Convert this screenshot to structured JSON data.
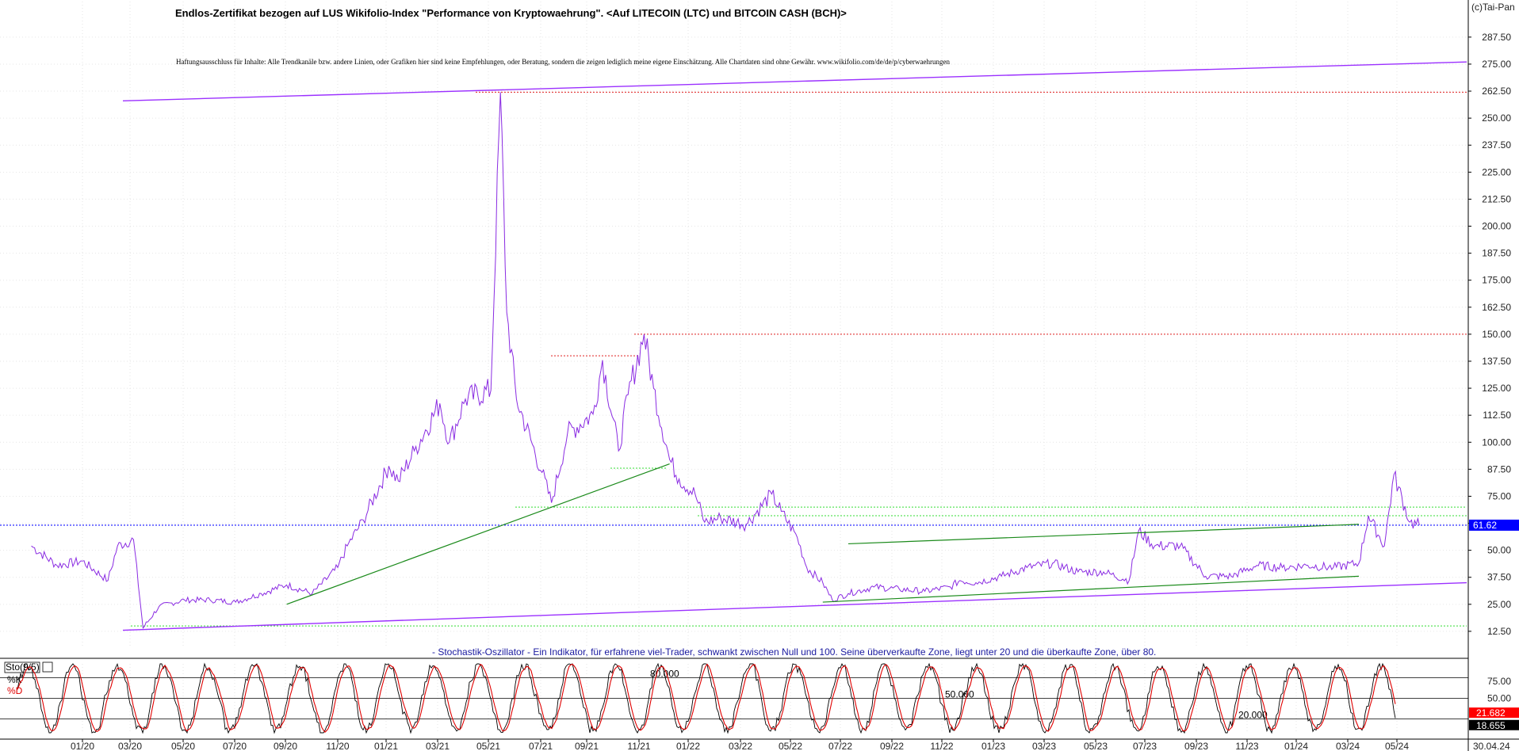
{
  "chart_data": [
    {
      "type": "line",
      "title": "Endlos-Zertifikat bezogen auf LUS Wikifolio-Index \"Performance von Kryptowaehrung\". <Auf LITECOIN (LTC) und BITCOIN CASH (BCH)>",
      "disclaimer": "Haftungsausschluss für Inhalte: Alle Trendkanäle bzw. andere Linien, oder Grafiken hier sind keine Empfehlungen, oder Beratung, sondern die zeigen lediglich meine eigene Einschätzung. Alle Chartdaten sind ohne Gewähr.  www.wikifolio.com/de/de/p/cyberwaehrungen",
      "copyright": "(c)Tai-Pan",
      "x_tick_labels": [
        "01/20",
        "03/20",
        "05/20",
        "07/20",
        "09/20",
        "11/20",
        "01/21",
        "03/21",
        "05/21",
        "07/21",
        "09/21",
        "11/21",
        "01/22",
        "03/22",
        "05/22",
        "07/22",
        "09/22",
        "11/22",
        "01/23",
        "03/23",
        "05/23",
        "07/23",
        "09/23",
        "11/23",
        "01/24",
        "03/24",
        "05/24"
      ],
      "x_last_label": "30.04.24",
      "y_tick_labels": [
        "12.50",
        "25.00",
        "37.50",
        "50.00",
        "62.50",
        "75.00",
        "87.50",
        "100.00",
        "112.50",
        "125.00",
        "137.50",
        "150.00",
        "162.50",
        "175.00",
        "187.50",
        "200.00",
        "212.50",
        "225.00",
        "237.50",
        "250.00",
        "262.50",
        "275.00",
        "287.50"
      ],
      "ylim": [
        0,
        296
      ],
      "current_value": 61.62,
      "current_value_label": "61.62",
      "colors": {
        "price": "#8a2be2",
        "trend_green": "#1a8a1a",
        "channel_purple": "#9b30ff",
        "resistance_red": "#e02020",
        "support_lightgreen": "#33dd33",
        "current_blue": "#1010ff",
        "badge_blue": "#0000ff"
      },
      "price_points": [
        [
          "11/19",
          52
        ],
        [
          "12/19",
          43
        ],
        [
          "01/20",
          45
        ],
        [
          "02/20",
          36
        ],
        [
          "02/20b",
          52
        ],
        [
          "03/20",
          55
        ],
        [
          "03/20b",
          14
        ],
        [
          "04/20",
          24
        ],
        [
          "05/20",
          27
        ],
        [
          "06/20",
          27
        ],
        [
          "07/20",
          26
        ],
        [
          "08/20",
          30
        ],
        [
          "09/20",
          34
        ],
        [
          "10/20",
          30
        ],
        [
          "11/20",
          42
        ],
        [
          "11/20b",
          52
        ],
        [
          "12/20",
          64
        ],
        [
          "01/21",
          89
        ],
        [
          "01/21b",
          82
        ],
        [
          "02/21",
          96
        ],
        [
          "03/21",
          118
        ],
        [
          "03/21b",
          100
        ],
        [
          "04/21",
          120
        ],
        [
          "05/21",
          124
        ],
        [
          "05/21b",
          262
        ],
        [
          "05/21c",
          160
        ],
        [
          "06/21",
          120
        ],
        [
          "07/21",
          86
        ],
        [
          "07/21b",
          72
        ],
        [
          "08/21",
          104
        ],
        [
          "09/21",
          113
        ],
        [
          "09/21b",
          138
        ],
        [
          "10/21",
          96
        ],
        [
          "10/21b",
          122
        ],
        [
          "11/21",
          150
        ],
        [
          "11/21b",
          125
        ],
        [
          "12/21",
          92
        ],
        [
          "12/21b",
          83
        ],
        [
          "01/22",
          76
        ],
        [
          "01/22b",
          63
        ],
        [
          "02/22",
          65
        ],
        [
          "03/22",
          62
        ],
        [
          "04/22",
          76
        ],
        [
          "04/22b",
          68
        ],
        [
          "05/22",
          56
        ],
        [
          "05/22b",
          42
        ],
        [
          "06/22",
          35
        ],
        [
          "06/22b",
          27
        ],
        [
          "07/22",
          30
        ],
        [
          "08/22",
          33
        ],
        [
          "09/22",
          32
        ],
        [
          "10/22",
          31
        ],
        [
          "11/22",
          33
        ],
        [
          "11/22b",
          36
        ],
        [
          "12/22",
          35
        ],
        [
          "01/23",
          38
        ],
        [
          "02/23",
          42
        ],
        [
          "03/23",
          44
        ],
        [
          "04/23",
          40
        ],
        [
          "05/23",
          40
        ],
        [
          "06/23",
          36
        ],
        [
          "06/23b",
          59
        ],
        [
          "07/23",
          52
        ],
        [
          "08/23",
          52
        ],
        [
          "09/23",
          38
        ],
        [
          "10/23",
          38
        ],
        [
          "11/23",
          43
        ],
        [
          "12/23",
          42
        ],
        [
          "01/24",
          43
        ],
        [
          "02/24",
          42
        ],
        [
          "03/24",
          44
        ],
        [
          "03/24b",
          66
        ],
        [
          "04/24",
          52
        ],
        [
          "04/24b",
          85
        ],
        [
          "05/24",
          63
        ],
        [
          "05/24b",
          61.62
        ]
      ],
      "green_trendlines": [
        {
          "from": [
            "09/20",
            25
          ],
          "to": [
            "12/21",
            90
          ]
        },
        {
          "from": [
            "07/22",
            53
          ],
          "to": [
            "03/24",
            62
          ]
        },
        {
          "from": [
            "06/22",
            26
          ],
          "to": [
            "03/24",
            38
          ]
        }
      ],
      "purple_channel_lines": [
        {
          "from": [
            "02/20",
            258
          ],
          "to": [
            "05/24",
            276
          ]
        },
        {
          "from": [
            "02/20",
            13
          ],
          "to": [
            "05/24",
            35
          ]
        }
      ],
      "red_dotted_levels": [
        262,
        150,
        140
      ],
      "lightgreen_dotted_levels": [
        88,
        70,
        66,
        15
      ]
    },
    {
      "type": "line",
      "title": "Sto(9/5)",
      "note": "- Stochastik-Oszillator - Ein Indikator, für erfahrene viel-Trader, schwankt zwischen Null und 100. Seine überverkaufte Zone, liegt unter 20 und die überkaufte Zone, über 80.",
      "series": [
        {
          "name": "%K",
          "color": "#000000"
        },
        {
          "name": "%D",
          "color": "#e00000"
        }
      ],
      "ylim": [
        0,
        100
      ],
      "levels": [
        {
          "value": 80,
          "label": "80.000"
        },
        {
          "value": 50,
          "label": "50.000"
        },
        {
          "value": 20,
          "label": "20.000"
        }
      ],
      "y_tick_labels": [
        "75.00",
        "50.00"
      ],
      "last_values": [
        {
          "name": "%D",
          "label": "21.682",
          "value": 21.682
        },
        {
          "name": "%K",
          "label": "18.655",
          "value": 18.655
        }
      ]
    }
  ]
}
